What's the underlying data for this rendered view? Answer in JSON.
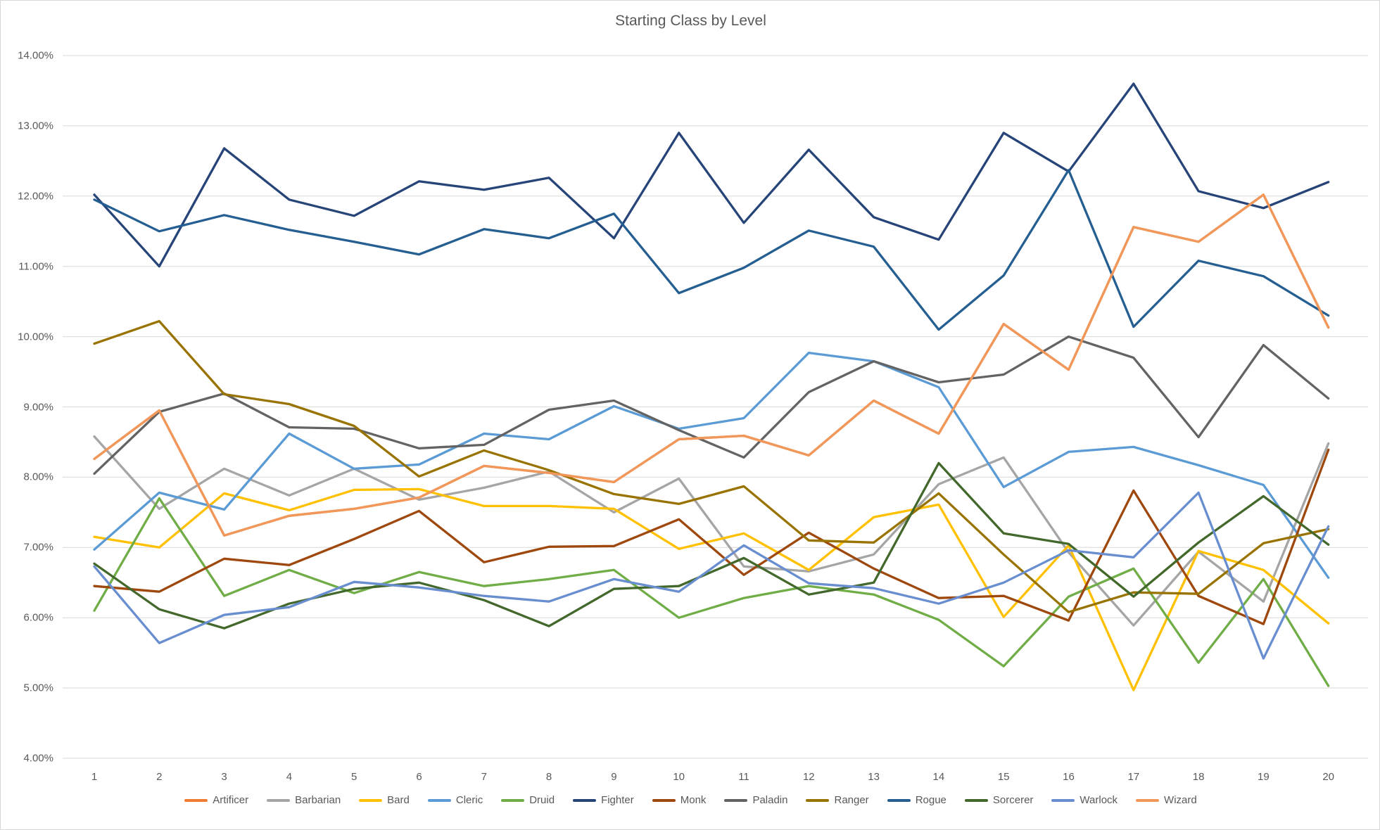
{
  "chart_data": {
    "type": "line",
    "title": "Starting Class by Level",
    "x_labels": [
      "1",
      "2",
      "3",
      "4",
      "5",
      "6",
      "7",
      "8",
      "9",
      "10",
      "11",
      "12",
      "13",
      "14",
      "15",
      "16",
      "17",
      "18",
      "19",
      "20"
    ],
    "y_ticks": [
      "14.00%",
      "13.00%",
      "12.00%",
      "11.00%",
      "10.00%",
      "9.00%",
      "8.00%",
      "7.00%",
      "6.00%",
      "5.00%",
      "4.00%"
    ],
    "ylim": [
      4.0,
      14.0
    ],
    "y_step": 1.0,
    "grid": "horizontal",
    "legend_position": "bottom",
    "gridline_color": "#d9d9d9",
    "text_color": "#595959",
    "series": [
      {
        "name": "Artificer",
        "color": "#ED7D31",
        "values": [
          8.26,
          8.95,
          7.17,
          7.45,
          7.55,
          7.71,
          8.16,
          8.06,
          7.93,
          8.54,
          8.59,
          8.31,
          9.09,
          8.62,
          10.18,
          9.53,
          11.56,
          11.35,
          12.02,
          10.13
        ]
      },
      {
        "name": "Barbarian",
        "color": "#A5A5A5",
        "values": [
          8.58,
          7.55,
          8.12,
          7.74,
          8.12,
          7.68,
          7.85,
          8.08,
          7.5,
          7.98,
          6.73,
          6.66,
          6.9,
          7.9,
          8.28,
          6.93,
          5.89,
          6.94,
          6.23,
          8.48
        ]
      },
      {
        "name": "Bard",
        "color": "#FFC000",
        "values": [
          7.15,
          7.0,
          7.77,
          7.53,
          7.82,
          7.83,
          7.59,
          7.59,
          7.55,
          6.98,
          7.2,
          6.68,
          7.43,
          7.61,
          6.01,
          7.03,
          4.97,
          6.95,
          6.68,
          5.92
        ]
      },
      {
        "name": "Cleric",
        "color": "#5B9BD5",
        "values": [
          6.97,
          7.78,
          7.54,
          8.62,
          8.12,
          8.18,
          8.62,
          8.54,
          9.01,
          8.69,
          8.84,
          9.77,
          9.65,
          9.28,
          7.86,
          8.36,
          8.43,
          8.17,
          7.89,
          6.57
        ]
      },
      {
        "name": "Druid",
        "color": "#70AD47",
        "values": [
          6.1,
          7.7,
          6.31,
          6.68,
          6.35,
          6.65,
          6.45,
          6.55,
          6.68,
          6.0,
          6.28,
          6.45,
          6.33,
          5.97,
          5.31,
          6.3,
          6.7,
          5.36,
          6.55,
          5.03
        ]
      },
      {
        "name": "Fighter",
        "color": "#264478",
        "values": [
          12.02,
          11.0,
          12.68,
          11.95,
          11.72,
          12.21,
          12.09,
          12.26,
          11.4,
          12.9,
          11.62,
          12.66,
          11.7,
          11.38,
          12.9,
          12.35,
          13.6,
          12.07,
          11.83,
          12.2
        ]
      },
      {
        "name": "Monk",
        "color": "#9E480E",
        "values": [
          6.45,
          6.37,
          6.84,
          6.75,
          7.12,
          7.52,
          6.79,
          7.01,
          7.02,
          7.4,
          6.61,
          7.21,
          6.7,
          6.28,
          6.31,
          5.96,
          7.81,
          6.31,
          5.91,
          8.39
        ]
      },
      {
        "name": "Paladin",
        "color": "#636363",
        "values": [
          8.05,
          8.93,
          9.19,
          8.71,
          8.69,
          8.41,
          8.46,
          8.96,
          9.09,
          8.67,
          8.28,
          9.21,
          9.65,
          9.35,
          9.46,
          10.0,
          9.7,
          8.57,
          9.88,
          9.12
        ]
      },
      {
        "name": "Ranger",
        "color": "#997300",
        "values": [
          9.9,
          10.22,
          9.18,
          9.04,
          8.73,
          8.01,
          8.38,
          8.1,
          7.76,
          7.62,
          7.87,
          7.1,
          7.07,
          7.77,
          6.9,
          6.08,
          6.36,
          6.34,
          7.06,
          7.26
        ]
      },
      {
        "name": "Rogue",
        "color": "#255E91",
        "values": [
          11.95,
          11.5,
          11.73,
          11.52,
          11.35,
          11.17,
          11.53,
          11.4,
          11.75,
          10.62,
          10.98,
          11.51,
          11.28,
          10.1,
          10.87,
          12.37,
          10.14,
          11.08,
          10.86,
          10.3
        ]
      },
      {
        "name": "Sorcerer",
        "color": "#43682B",
        "values": [
          6.77,
          6.12,
          5.85,
          6.2,
          6.41,
          6.5,
          6.25,
          5.88,
          6.41,
          6.45,
          6.85,
          6.33,
          6.5,
          8.2,
          7.2,
          7.05,
          6.3,
          7.07,
          7.73,
          7.04
        ]
      },
      {
        "name": "Warlock",
        "color": "#698ED0",
        "values": [
          6.73,
          5.64,
          6.04,
          6.15,
          6.51,
          6.43,
          6.31,
          6.23,
          6.55,
          6.37,
          7.03,
          6.49,
          6.42,
          6.2,
          6.5,
          6.96,
          6.86,
          7.78,
          5.42,
          7.3
        ]
      },
      {
        "name": "Wizard",
        "color": "#F1975A",
        "values": [
          8.26,
          8.95,
          7.17,
          7.45,
          7.55,
          7.71,
          8.16,
          8.06,
          7.93,
          8.54,
          8.59,
          8.31,
          9.09,
          8.62,
          10.18,
          9.53,
          11.56,
          11.35,
          12.02,
          10.13
        ]
      }
    ]
  }
}
